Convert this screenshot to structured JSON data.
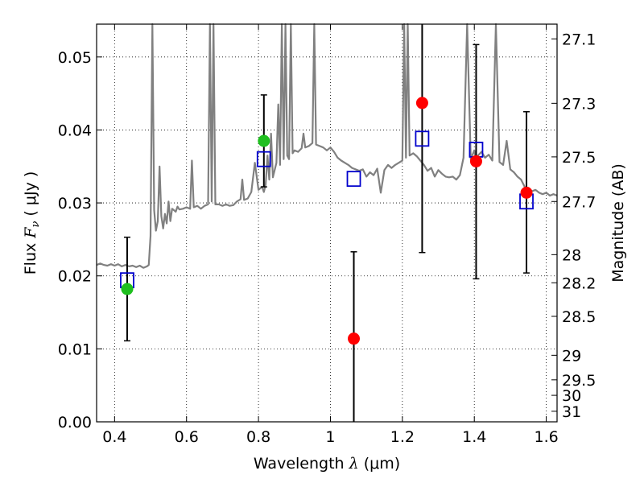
{
  "chart_data": {
    "type": "scatter",
    "xlabel": "Wavelength",
    "xlabel_math": "λ",
    "xlabel_unit": "(μm)",
    "ylabel": "Flux",
    "ylabel_math_main": "F",
    "ylabel_math_sub": "ν",
    "ylabel_unit": "( μJy )",
    "y2label": "Magnitude (AB)",
    "xlim": [
      0.35,
      1.63
    ],
    "ylim": [
      0,
      0.0545
    ],
    "grid": true,
    "grid_style": "dotted",
    "x_ticks": [
      {
        "value": 0.4,
        "label": "0.4"
      },
      {
        "value": 0.6,
        "label": "0.6"
      },
      {
        "value": 0.8,
        "label": "0.8"
      },
      {
        "value": 1.0,
        "label": "1"
      },
      {
        "value": 1.2,
        "label": "1.2"
      },
      {
        "value": 1.4,
        "label": "1.4"
      },
      {
        "value": 1.6,
        "label": "1.6"
      }
    ],
    "y_ticks": [
      {
        "value": 0.0,
        "label": "0.00"
      },
      {
        "value": 0.01,
        "label": "0.01"
      },
      {
        "value": 0.02,
        "label": "0.02"
      },
      {
        "value": 0.03,
        "label": "0.03"
      },
      {
        "value": 0.04,
        "label": "0.04"
      },
      {
        "value": 0.05,
        "label": "0.05"
      }
    ],
    "mag_ticks": [
      {
        "label": "27.1",
        "mag": 27.1
      },
      {
        "label": "27.3",
        "mag": 27.3
      },
      {
        "label": "27.5",
        "mag": 27.5
      },
      {
        "label": "27.7",
        "mag": 27.7
      },
      {
        "label": "28",
        "mag": 28.0
      },
      {
        "label": "28.2",
        "mag": 28.2
      },
      {
        "label": "28.5",
        "mag": 28.5
      },
      {
        "label": "29",
        "mag": 29.0
      },
      {
        "label": "29.5",
        "mag": 29.5
      },
      {
        "label": "30",
        "mag": 30.0
      },
      {
        "label": "31",
        "mag": 31.0
      }
    ],
    "series": [
      {
        "kind": "line",
        "color": "#808080",
        "points": [
          [
            0.35,
            0.0215
          ],
          [
            0.36,
            0.0217
          ],
          [
            0.37,
            0.0215
          ],
          [
            0.38,
            0.0214
          ],
          [
            0.39,
            0.0216
          ],
          [
            0.4,
            0.0214
          ],
          [
            0.41,
            0.0216
          ],
          [
            0.42,
            0.0213
          ],
          [
            0.43,
            0.0215
          ],
          [
            0.44,
            0.0213
          ],
          [
            0.45,
            0.0214
          ],
          [
            0.46,
            0.0212
          ],
          [
            0.47,
            0.0214
          ],
          [
            0.48,
            0.0211
          ],
          [
            0.49,
            0.0213
          ],
          [
            0.495,
            0.0215
          ],
          [
            0.5,
            0.0255
          ],
          [
            0.505,
            0.0545
          ],
          [
            0.51,
            0.029
          ],
          [
            0.515,
            0.0262
          ],
          [
            0.52,
            0.0275
          ],
          [
            0.525,
            0.035
          ],
          [
            0.53,
            0.0282
          ],
          [
            0.535,
            0.0265
          ],
          [
            0.54,
            0.0285
          ],
          [
            0.545,
            0.0272
          ],
          [
            0.55,
            0.0302
          ],
          [
            0.555,
            0.0275
          ],
          [
            0.56,
            0.0292
          ],
          [
            0.565,
            0.029
          ],
          [
            0.57,
            0.0288
          ],
          [
            0.575,
            0.0295
          ],
          [
            0.58,
            0.0291
          ],
          [
            0.59,
            0.0292
          ],
          [
            0.6,
            0.0294
          ],
          [
            0.61,
            0.0292
          ],
          [
            0.615,
            0.0358
          ],
          [
            0.62,
            0.0294
          ],
          [
            0.63,
            0.0296
          ],
          [
            0.64,
            0.0292
          ],
          [
            0.65,
            0.0296
          ],
          [
            0.66,
            0.0298
          ],
          [
            0.665,
            0.0545
          ],
          [
            0.67,
            0.0302
          ],
          [
            0.675,
            0.0545
          ],
          [
            0.68,
            0.0298
          ],
          [
            0.69,
            0.0298
          ],
          [
            0.7,
            0.0296
          ],
          [
            0.71,
            0.0298
          ],
          [
            0.72,
            0.0296
          ],
          [
            0.73,
            0.0297
          ],
          [
            0.74,
            0.0302
          ],
          [
            0.75,
            0.0305
          ],
          [
            0.755,
            0.0332
          ],
          [
            0.76,
            0.0304
          ],
          [
            0.77,
            0.0306
          ],
          [
            0.78,
            0.0315
          ],
          [
            0.79,
            0.0355
          ],
          [
            0.8,
            0.0318
          ],
          [
            0.81,
            0.0322
          ],
          [
            0.815,
            0.0315
          ],
          [
            0.82,
            0.0325
          ],
          [
            0.825,
            0.0365
          ],
          [
            0.83,
            0.0332
          ],
          [
            0.835,
            0.0395
          ],
          [
            0.84,
            0.0335
          ],
          [
            0.85,
            0.0355
          ],
          [
            0.855,
            0.0435
          ],
          [
            0.86,
            0.0352
          ],
          [
            0.865,
            0.0545
          ],
          [
            0.87,
            0.036
          ],
          [
            0.875,
            0.0545
          ],
          [
            0.88,
            0.0365
          ],
          [
            0.885,
            0.036
          ],
          [
            0.89,
            0.0545
          ],
          [
            0.895,
            0.0368
          ],
          [
            0.9,
            0.0372
          ],
          [
            0.91,
            0.037
          ],
          [
            0.92,
            0.0375
          ],
          [
            0.925,
            0.0395
          ],
          [
            0.93,
            0.0376
          ],
          [
            0.94,
            0.0378
          ],
          [
            0.95,
            0.0382
          ],
          [
            0.955,
            0.0545
          ],
          [
            0.96,
            0.038
          ],
          [
            0.97,
            0.0378
          ],
          [
            0.98,
            0.0376
          ],
          [
            0.99,
            0.0372
          ],
          [
            1.0,
            0.0376
          ],
          [
            1.01,
            0.037
          ],
          [
            1.02,
            0.0362
          ],
          [
            1.03,
            0.0358
          ],
          [
            1.04,
            0.0355
          ],
          [
            1.05,
            0.0352
          ],
          [
            1.06,
            0.0348
          ],
          [
            1.07,
            0.0346
          ],
          [
            1.08,
            0.0344
          ],
          [
            1.09,
            0.0346
          ],
          [
            1.1,
            0.0336
          ],
          [
            1.11,
            0.0342
          ],
          [
            1.12,
            0.0338
          ],
          [
            1.13,
            0.0347
          ],
          [
            1.14,
            0.0314
          ],
          [
            1.15,
            0.0345
          ],
          [
            1.16,
            0.0352
          ],
          [
            1.17,
            0.0348
          ],
          [
            1.18,
            0.0352
          ],
          [
            1.19,
            0.0355
          ],
          [
            1.2,
            0.0358
          ],
          [
            1.205,
            0.0545
          ],
          [
            1.21,
            0.0362
          ],
          [
            1.215,
            0.0545
          ],
          [
            1.22,
            0.0365
          ],
          [
            1.23,
            0.0368
          ],
          [
            1.24,
            0.0364
          ],
          [
            1.25,
            0.0358
          ],
          [
            1.26,
            0.0352
          ],
          [
            1.27,
            0.0344
          ],
          [
            1.28,
            0.0348
          ],
          [
            1.29,
            0.0336
          ],
          [
            1.3,
            0.0345
          ],
          [
            1.31,
            0.034
          ],
          [
            1.32,
            0.0336
          ],
          [
            1.33,
            0.0335
          ],
          [
            1.34,
            0.0336
          ],
          [
            1.35,
            0.0332
          ],
          [
            1.36,
            0.0338
          ],
          [
            1.37,
            0.0362
          ],
          [
            1.38,
            0.0545
          ],
          [
            1.39,
            0.036
          ],
          [
            1.4,
            0.0372
          ],
          [
            1.405,
            0.0358
          ],
          [
            1.41,
            0.0365
          ],
          [
            1.42,
            0.037
          ],
          [
            1.43,
            0.0362
          ],
          [
            1.44,
            0.0366
          ],
          [
            1.45,
            0.0358
          ],
          [
            1.46,
            0.0545
          ],
          [
            1.47,
            0.0356
          ],
          [
            1.48,
            0.0352
          ],
          [
            1.49,
            0.0385
          ],
          [
            1.5,
            0.0346
          ],
          [
            1.51,
            0.0342
          ],
          [
            1.52,
            0.0336
          ],
          [
            1.53,
            0.0332
          ],
          [
            1.54,
            0.0322
          ],
          [
            1.55,
            0.0318
          ],
          [
            1.56,
            0.0316
          ],
          [
            1.57,
            0.0318
          ],
          [
            1.58,
            0.0314
          ],
          [
            1.59,
            0.0312
          ],
          [
            1.6,
            0.0314
          ],
          [
            1.61,
            0.031
          ],
          [
            1.62,
            0.0312
          ],
          [
            1.63,
            0.031
          ]
        ]
      },
      {
        "kind": "squares",
        "color": "#0000cc",
        "points": [
          [
            0.435,
            0.0194
          ],
          [
            0.815,
            0.036
          ],
          [
            1.065,
            0.0333
          ],
          [
            1.255,
            0.0388
          ],
          [
            1.405,
            0.0373
          ],
          [
            1.545,
            0.0302
          ]
        ]
      },
      {
        "kind": "errorbar-points",
        "color": "#1fbf1f",
        "points": [
          {
            "x": 0.435,
            "y": 0.0182,
            "lo": 0.0111,
            "hi": 0.0253
          },
          {
            "x": 0.815,
            "y": 0.0385,
            "lo": 0.0322,
            "hi": 0.0448
          }
        ]
      },
      {
        "kind": "errorbar-points",
        "color": "#ff0000",
        "points": [
          {
            "x": 1.065,
            "y": 0.0114,
            "lo": 0.0,
            "hi": 0.0233
          },
          {
            "x": 1.255,
            "y": 0.0437,
            "lo": 0.0232,
            "hi": 0.0545
          },
          {
            "x": 1.405,
            "y": 0.0357,
            "lo": 0.0196,
            "hi": 0.0517
          },
          {
            "x": 1.545,
            "y": 0.0314,
            "lo": 0.0204,
            "hi": 0.0425
          }
        ]
      }
    ]
  }
}
